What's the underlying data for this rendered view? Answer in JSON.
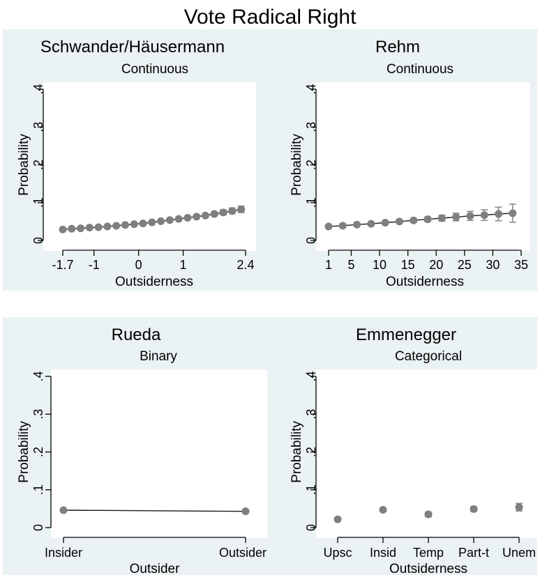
{
  "figure": {
    "title": "Vote Radical Right",
    "colors": {
      "background": "#ffffff",
      "plot_region": "#eaf2f3",
      "marker": "#7f7f7f",
      "line": "#1a1a1a",
      "ci": "#8c8c8c"
    }
  },
  "chart_data": [
    {
      "type": "line",
      "title": "Schwander/Häusermann",
      "subtitle": "Continuous",
      "xlabel": "Outsiderness",
      "ylabel": "Probability",
      "xlim": [
        -1.85,
        2.55
      ],
      "ylim": [
        0,
        0.4
      ],
      "x_ticks": [
        -1.7,
        -1,
        0,
        1,
        2.4
      ],
      "x_tick_labels": [
        "-1.7",
        "-1",
        "0",
        "1",
        "2.4"
      ],
      "y_ticks": [
        0,
        0.1,
        0.2,
        0.3,
        0.4
      ],
      "y_tick_labels": [
        "0",
        ".1",
        ".2",
        ".3",
        ".4"
      ],
      "grid": false,
      "x": [
        -1.7,
        -1.5,
        -1.3,
        -1.1,
        -0.9,
        -0.7,
        -0.5,
        -0.3,
        -0.1,
        0.1,
        0.3,
        0.5,
        0.7,
        0.9,
        1.1,
        1.3,
        1.5,
        1.7,
        1.9,
        2.1,
        2.3
      ],
      "values": [
        0.029,
        0.031,
        0.032,
        0.034,
        0.035,
        0.037,
        0.039,
        0.041,
        0.043,
        0.045,
        0.048,
        0.051,
        0.054,
        0.057,
        0.06,
        0.063,
        0.066,
        0.07,
        0.074,
        0.078,
        0.082
      ],
      "ci_lower": [
        0.025,
        0.027,
        0.029,
        0.031,
        0.032,
        0.034,
        0.036,
        0.038,
        0.04,
        0.042,
        0.045,
        0.048,
        0.051,
        0.054,
        0.057,
        0.059,
        0.062,
        0.065,
        0.068,
        0.071,
        0.074
      ],
      "ci_upper": [
        0.033,
        0.035,
        0.036,
        0.037,
        0.038,
        0.04,
        0.042,
        0.044,
        0.046,
        0.048,
        0.051,
        0.054,
        0.057,
        0.06,
        0.063,
        0.067,
        0.071,
        0.076,
        0.081,
        0.086,
        0.091
      ]
    },
    {
      "type": "line",
      "title": "Rehm",
      "subtitle": "Continuous",
      "xlabel": "Outsiderness",
      "ylabel": "Probability",
      "xlim": [
        -0.5,
        37.5
      ],
      "ylim": [
        0,
        0.4
      ],
      "x_ticks": [
        1,
        5,
        10,
        15,
        20,
        25,
        30,
        35
      ],
      "x_tick_labels": [
        "1",
        "5",
        "10",
        "15",
        "20",
        "25",
        "30",
        "35"
      ],
      "y_ticks": [
        0,
        0.1,
        0.2,
        0.3,
        0.4
      ],
      "y_tick_labels": [
        "0",
        ".1",
        ".2",
        ".3",
        ".4"
      ],
      "grid": false,
      "x": [
        1,
        3.5,
        6,
        8.5,
        11,
        13.5,
        16,
        18.5,
        21,
        23.5,
        26,
        28.5,
        31,
        33.5
      ],
      "values": [
        0.037,
        0.039,
        0.042,
        0.044,
        0.047,
        0.05,
        0.053,
        0.056,
        0.059,
        0.062,
        0.065,
        0.067,
        0.07,
        0.072
      ],
      "ci_lower": [
        0.034,
        0.036,
        0.039,
        0.041,
        0.043,
        0.046,
        0.048,
        0.05,
        0.051,
        0.052,
        0.053,
        0.053,
        0.052,
        0.048
      ],
      "ci_upper": [
        0.04,
        0.042,
        0.045,
        0.047,
        0.051,
        0.054,
        0.058,
        0.062,
        0.067,
        0.072,
        0.077,
        0.081,
        0.088,
        0.096
      ]
    },
    {
      "type": "line",
      "title": "Rueda",
      "subtitle": "Binary",
      "xlabel": "Outsider",
      "ylabel": "Probability",
      "xlim": [
        0,
        1
      ],
      "ylim": [
        0,
        0.4
      ],
      "x_ticks": [
        0,
        1
      ],
      "x_tick_labels": [
        "Insider",
        "Outsider"
      ],
      "y_ticks": [
        0,
        0.1,
        0.2,
        0.3,
        0.4
      ],
      "y_tick_labels": [
        "0",
        ".1",
        ".2",
        ".3",
        ".4"
      ],
      "grid": false,
      "x": [
        0,
        1
      ],
      "values": [
        0.046,
        0.043
      ],
      "ci_lower": [
        0.044,
        0.04
      ],
      "ci_upper": [
        0.048,
        0.046
      ]
    },
    {
      "type": "scatter",
      "title": "Emmenegger",
      "subtitle": "Categorical",
      "xlabel": "Outsiderness",
      "ylabel": "Probability",
      "xlim": [
        0,
        4
      ],
      "ylim": [
        0,
        0.4
      ],
      "categories": [
        "Upsc",
        "Insid",
        "Temp",
        "Part-t",
        "Unem"
      ],
      "y_ticks": [
        0,
        0.1,
        0.2,
        0.3,
        0.4
      ],
      "y_tick_labels": [
        "0",
        ".1",
        ".2",
        ".3",
        ".4"
      ],
      "grid": false,
      "values": [
        0.022,
        0.047,
        0.035,
        0.049,
        0.054
      ],
      "ci_lower": [
        0.018,
        0.043,
        0.029,
        0.043,
        0.044
      ],
      "ci_upper": [
        0.026,
        0.051,
        0.041,
        0.055,
        0.064
      ]
    }
  ]
}
